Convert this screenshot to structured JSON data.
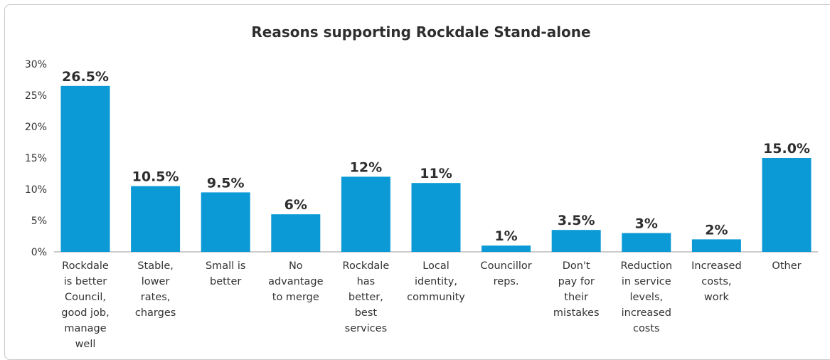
{
  "chart_data": {
    "type": "bar",
    "title": "Reasons supporting Rockdale Stand-alone",
    "xlabel": "",
    "ylabel": "",
    "ylim": [
      0,
      30
    ],
    "yticks": [
      "0%",
      "5%",
      "10%",
      "15%",
      "20%",
      "25%",
      "30%"
    ],
    "ytick_values": [
      0,
      5,
      10,
      15,
      20,
      25,
      30
    ],
    "grid": false,
    "bar_color": "#0b9ad6",
    "categories": [
      [
        "Rockdale",
        "is better",
        "Council,",
        "good job,",
        "manage",
        "well"
      ],
      [
        "Stable,",
        "lower",
        "rates,",
        "charges"
      ],
      [
        "Small is",
        "better"
      ],
      [
        "No",
        "advantage",
        "to merge"
      ],
      [
        "Rockdale",
        "has",
        "better,",
        "best",
        "services"
      ],
      [
        "Local",
        "identity,",
        "community"
      ],
      [
        "Councillor",
        "reps."
      ],
      [
        "Don't",
        "pay for",
        "their",
        "mistakes"
      ],
      [
        "Reduction",
        "in service",
        "levels,",
        "increased",
        "costs"
      ],
      [
        "Increased",
        "costs,",
        "work"
      ],
      [
        "Other"
      ]
    ],
    "values": [
      26.5,
      10.5,
      9.5,
      6,
      12,
      11,
      1,
      3.5,
      3,
      2,
      15.0
    ],
    "data_labels": [
      "26.5%",
      "10.5%",
      "9.5%",
      "6%",
      "12%",
      "11%",
      "1%",
      "3.5%",
      "3%",
      "2%",
      "15.0%"
    ]
  }
}
